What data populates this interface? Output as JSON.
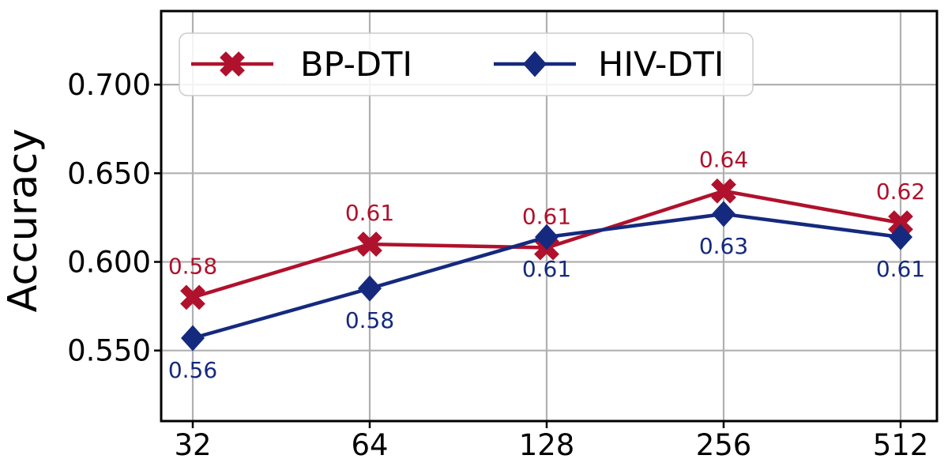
{
  "figure": {
    "background": "#ffffff",
    "border_color": "#000000",
    "grid_color": "#b0b0b0"
  },
  "chart_data": {
    "type": "line",
    "title": "",
    "xlabel": "",
    "ylabel": "Accuracy",
    "grid": true,
    "legend_position": "upper left",
    "categories": [
      "32",
      "64",
      "128",
      "256",
      "512"
    ],
    "x_scale": "categorical (powers of two)",
    "y_ticks": [
      0.55,
      0.6,
      0.65,
      0.7
    ],
    "y_tick_labels": [
      "0.550",
      "0.600",
      "0.650",
      "0.700"
    ],
    "ylim": [
      0.5102,
      0.7415
    ],
    "series": [
      {
        "name": "BP-DTI",
        "color": "#b0112c",
        "marker": "X",
        "values": [
          0.58,
          0.61,
          0.61,
          0.64,
          0.62
        ],
        "plotted": [
          0.58,
          0.61,
          0.608,
          0.64,
          0.622
        ],
        "labels": [
          "0.58",
          "0.61",
          "0.61",
          "0.64",
          "0.62"
        ],
        "label_side": "above"
      },
      {
        "name": "HIV-DTI",
        "color": "#152a7e",
        "marker": "D",
        "values": [
          0.56,
          0.58,
          0.61,
          0.63,
          0.61
        ],
        "plotted": [
          0.557,
          0.585,
          0.614,
          0.627,
          0.614
        ],
        "labels": [
          "0.56",
          "0.58",
          "0.61",
          "0.63",
          "0.61"
        ],
        "label_side": "below"
      }
    ]
  },
  "legend": {
    "items": [
      {
        "label": "BP-DTI",
        "color": "#b0112c",
        "marker": "X"
      },
      {
        "label": "HIV-DTI",
        "color": "#152a7e",
        "marker": "D"
      }
    ]
  }
}
